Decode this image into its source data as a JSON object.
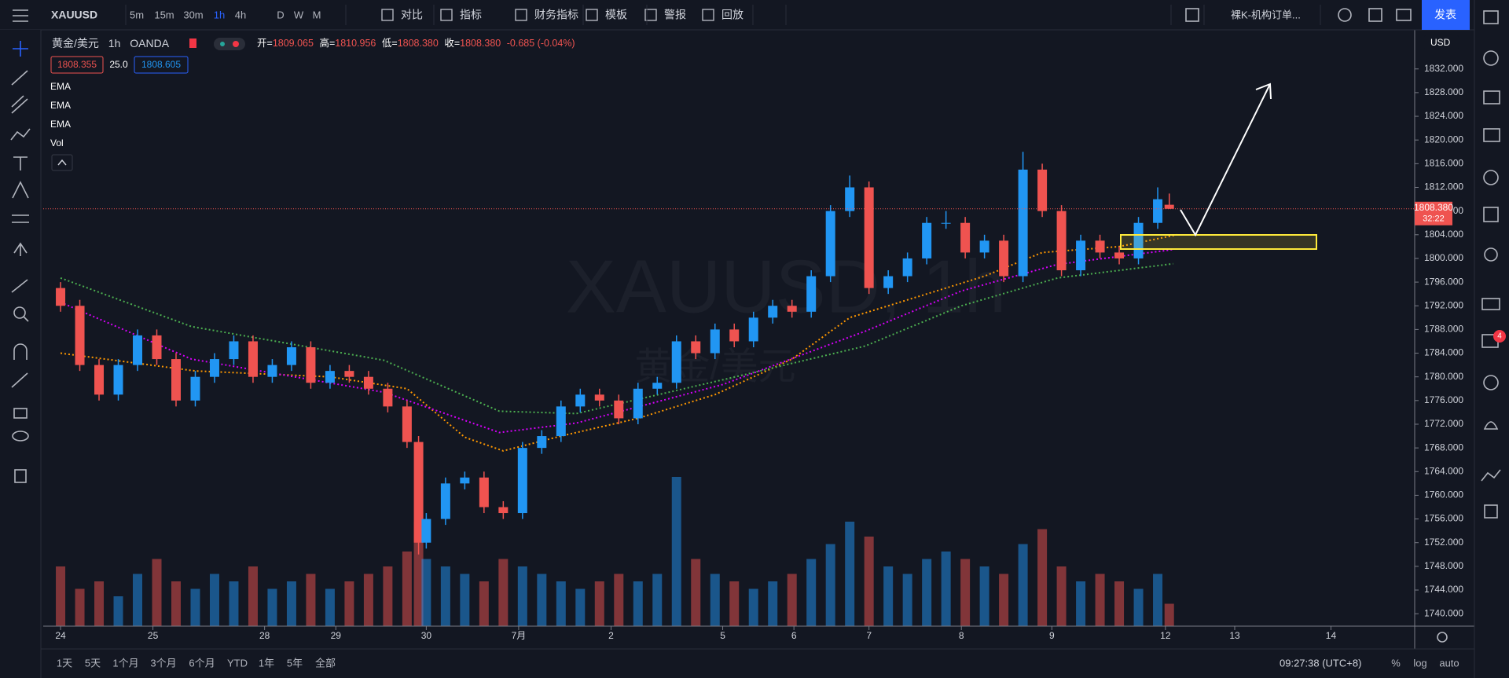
{
  "ui": {
    "top_bar": {
      "symbol": "XAUUSD",
      "intervals": [
        "5m",
        "15m",
        "30m",
        "1h",
        "4h",
        "D",
        "W",
        "M"
      ],
      "active_interval": 3,
      "tools": [
        "对比",
        "指标",
        "财务指标",
        "模板",
        "警报",
        "回放"
      ],
      "layout_name": "裸K-机构订单...",
      "publish": "发表"
    },
    "bottom_bar": {
      "ranges": [
        "1天",
        "5天",
        "1个月",
        "3个月",
        "6个月",
        "YTD",
        "1年",
        "5年",
        "全部"
      ],
      "clock": "09:27:38 (UTC+8)",
      "options": [
        "%",
        "log",
        "auto"
      ]
    },
    "notification_count": "4"
  },
  "chart_data": {
    "type": "candlestick",
    "symbol_name": "黄金/美元",
    "interval": "1h",
    "source": "OANDA",
    "watermark": "XAUUSD, 1h",
    "watermark_sub": "黄金/美元",
    "header": {
      "open_label": "开=",
      "open": "1809.065",
      "high_label": "高=",
      "high": "1810.956",
      "low_label": "低=",
      "low": "1808.380",
      "close_label": "收=",
      "close": "1808.380",
      "change": "-0.685 (-0.04%)"
    },
    "bid": "1808.355",
    "spread": "25.0",
    "ask": "1808.605",
    "indicators": [
      "EMA",
      "EMA",
      "EMA",
      "Vol"
    ],
    "currency": "USD",
    "countdown": "32:22",
    "x": [
      0,
      5,
      10,
      15,
      20,
      25,
      30,
      35,
      40,
      45,
      50,
      55,
      60,
      65,
      70,
      75,
      80,
      85,
      90,
      93,
      95,
      100,
      105,
      110,
      115,
      120,
      125,
      130,
      135,
      140,
      145,
      150,
      155,
      160,
      165,
      170,
      175,
      180,
      185,
      190,
      195,
      200,
      205,
      210,
      215,
      220,
      225,
      230,
      235,
      240,
      245,
      250,
      255,
      260,
      265,
      270,
      275,
      280,
      285,
      288
    ],
    "open": [
      1795,
      1792,
      1782,
      1777,
      1782,
      1787,
      1783,
      1776,
      1780,
      1783,
      1786,
      1780,
      1782,
      1785,
      1779,
      1781,
      1780,
      1778,
      1775,
      1769,
      1752,
      1756,
      1762,
      1763,
      1758,
      1757,
      1768,
      1770,
      1775,
      1777,
      1776,
      1773,
      1778,
      1779,
      1786,
      1784,
      1788,
      1786,
      1790,
      1792,
      1791,
      1797,
      1808,
      1812,
      1795,
      1797,
      1800,
      1806,
      1806,
      1801,
      1803,
      1797,
      1815,
      1808,
      1798,
      1803,
      1801,
      1800,
      1806,
      1809.065
    ],
    "high": [
      1796,
      1793,
      1783,
      1783,
      1788,
      1788,
      1784,
      1781,
      1784,
      1787,
      1787,
      1783,
      1786,
      1786,
      1782,
      1782,
      1781,
      1779,
      1776,
      1770,
      1757,
      1763,
      1764,
      1764,
      1759,
      1769,
      1771,
      1776,
      1778,
      1778,
      1777,
      1779,
      1780,
      1787,
      1787,
      1789,
      1789,
      1791,
      1793,
      1793,
      1798,
      1809,
      1814,
      1813,
      1798,
      1801,
      1807,
      1808,
      1807,
      1804,
      1804,
      1818,
      1816,
      1809,
      1804,
      1804,
      1802,
      1807,
      1812,
      1810.956
    ],
    "low": [
      1791,
      1781,
      1776,
      1776,
      1781,
      1782,
      1775,
      1775,
      1779,
      1782,
      1779,
      1779,
      1781,
      1778,
      1778,
      1779,
      1777,
      1774,
      1768,
      1750,
      1751,
      1755,
      1761,
      1757,
      1756,
      1756,
      1767,
      1769,
      1774,
      1775,
      1772,
      1772,
      1777,
      1778,
      1783,
      1783,
      1785,
      1785,
      1789,
      1790,
      1790,
      1796,
      1807,
      1794,
      1794,
      1796,
      1799,
      1805,
      1800,
      1800,
      1796,
      1796,
      1807,
      1797,
      1797,
      1800,
      1799,
      1799,
      1805,
      1808.38
    ],
    "close": [
      1792,
      1782,
      1777,
      1782,
      1787,
      1783,
      1776,
      1780,
      1783,
      1786,
      1780,
      1782,
      1785,
      1779,
      1781,
      1780,
      1778,
      1775,
      1769,
      1752,
      1756,
      1762,
      1763,
      1758,
      1757,
      1768,
      1770,
      1775,
      1777,
      1776,
      1773,
      1778,
      1779,
      1786,
      1784,
      1788,
      1786,
      1790,
      1792,
      1791,
      1797,
      1808,
      1812,
      1795,
      1797,
      1800,
      1806,
      1806,
      1801,
      1803,
      1797,
      1815,
      1808,
      1798,
      1803,
      1801,
      1800,
      1806,
      1810,
      1808.38
    ],
    "volume": [
      40,
      25,
      30,
      20,
      35,
      45,
      30,
      25,
      35,
      30,
      40,
      25,
      30,
      35,
      25,
      30,
      35,
      40,
      50,
      70,
      45,
      40,
      35,
      30,
      45,
      40,
      35,
      30,
      25,
      30,
      35,
      30,
      35,
      100,
      45,
      35,
      30,
      25,
      30,
      35,
      45,
      55,
      70,
      60,
      40,
      35,
      45,
      50,
      45,
      40,
      35,
      55,
      65,
      40,
      30,
      35,
      30,
      25,
      35,
      15
    ],
    "up_color": "#2196f3",
    "down_color": "#ef5350",
    "ema": [
      {
        "color": "#ff9800",
        "x": [
          0,
          35,
          70,
          90,
          105,
          115,
          130,
          150,
          170,
          190,
          205,
          220,
          240,
          255,
          275,
          290
        ],
        "values": [
          1784,
          1781,
          1780,
          1778,
          1769.8,
          1767.5,
          1770,
          1773,
          1777,
          1783,
          1790,
          1793,
          1797,
          1801,
          1802,
          1804
        ]
      },
      {
        "color": "#d500f9",
        "x": [
          0,
          34,
          84,
          114,
          134,
          172,
          209,
          234,
          259,
          289
        ],
        "values": [
          1792.6,
          1783,
          1777.4,
          1770.6,
          1772.2,
          1778.7,
          1787.7,
          1794.5,
          1799,
          1801.5
        ]
      },
      {
        "color": "#4caf50",
        "x": [
          0,
          34,
          84,
          114,
          134,
          172,
          209,
          234,
          259,
          289
        ],
        "values": [
          1796.7,
          1788.5,
          1782.8,
          1774.2,
          1773.8,
          1779.5,
          1785.2,
          1792,
          1796.7,
          1799.1
        ]
      }
    ],
    "xlim": [
      -4.5,
      351.75
    ],
    "xticks": [
      {
        "value": 0,
        "label": "24"
      },
      {
        "value": 24,
        "label": "25"
      },
      {
        "value": 53,
        "label": "28"
      },
      {
        "value": 71.5,
        "label": "29"
      },
      {
        "value": 95,
        "label": "30"
      },
      {
        "value": 119,
        "label": "7月"
      },
      {
        "value": 143,
        "label": "2"
      },
      {
        "value": 172,
        "label": "5"
      },
      {
        "value": 190.5,
        "label": "6"
      },
      {
        "value": 210,
        "label": "7"
      },
      {
        "value": 234,
        "label": "8"
      },
      {
        "value": 257.5,
        "label": "9"
      },
      {
        "value": 287,
        "label": "12"
      },
      {
        "value": 305,
        "label": "13"
      },
      {
        "value": 330,
        "label": "14"
      }
    ],
    "ylim": [
      1737.9,
      1838.6
    ],
    "yticks": [
      {
        "value": 1740,
        "label": "1740.000"
      },
      {
        "value": 1744,
        "label": "1744.000"
      },
      {
        "value": 1748,
        "label": "1748.000"
      },
      {
        "value": 1752,
        "label": "1752.000"
      },
      {
        "value": 1756,
        "label": "1756.000"
      },
      {
        "value": 1760,
        "label": "1760.000"
      },
      {
        "value": 1764,
        "label": "1764.000"
      },
      {
        "value": 1768,
        "label": "1768.000"
      },
      {
        "value": 1772,
        "label": "1772.000"
      },
      {
        "value": 1776,
        "label": "1776.000"
      },
      {
        "value": 1780,
        "label": "1780.000"
      },
      {
        "value": 1784,
        "label": "1784.000"
      },
      {
        "value": 1788,
        "label": "1788.000"
      },
      {
        "value": 1792,
        "label": "1792.000"
      },
      {
        "value": 1796,
        "label": "1796.000"
      },
      {
        "value": 1800,
        "label": "1800.000"
      },
      {
        "value": 1804,
        "label": "1804.000"
      },
      {
        "value": 1808,
        "label": "1808.000"
      },
      {
        "value": 1812,
        "label": "1812.000"
      },
      {
        "value": 1816,
        "label": "1816.000"
      },
      {
        "value": 1820,
        "label": "1820.000"
      },
      {
        "value": 1824,
        "label": "1824.000"
      },
      {
        "value": 1828,
        "label": "1828.000"
      },
      {
        "value": 1832,
        "label": "1832.000"
      }
    ]
  }
}
